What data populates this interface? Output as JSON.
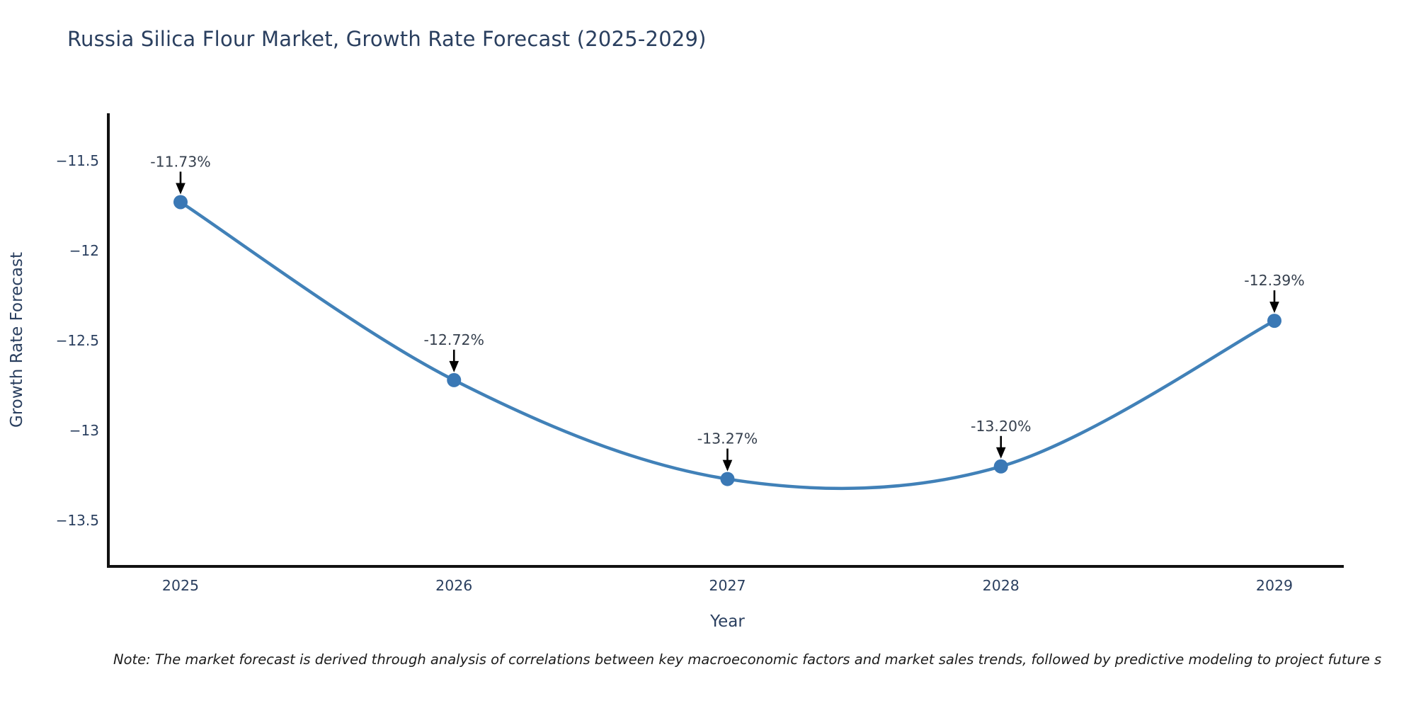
{
  "page": {
    "title": "Russia Silica Flour Market, Growth Rate Forecast (2025-2029)",
    "note": "Note: The market forecast is derived through analysis of correlations between key macroeconomic factors and market sales trends, followed by predictive modeling to project future s"
  },
  "chart_data": {
    "type": "line",
    "title": "Russia Silica Flour Market, Growth Rate Forecast (2025-2029)",
    "xlabel": "Year",
    "ylabel": "Growth Rate Forecast",
    "x": [
      2025,
      2026,
      2027,
      2028,
      2029
    ],
    "series": [
      {
        "name": "Growth Rate Forecast",
        "values": [
          -11.73,
          -12.72,
          -13.27,
          -13.2,
          -12.39
        ],
        "point_labels": [
          "-11.73%",
          "-12.72%",
          "-13.27%",
          "-13.20%",
          "-12.39%"
        ]
      }
    ],
    "x_tick_labels": [
      "2025",
      "2026",
      "2027",
      "2028",
      "2029"
    ],
    "y_ticks": [
      -11.5,
      -12,
      -12.5,
      -13,
      -13.5
    ],
    "y_tick_labels": [
      "−11.5",
      "−12",
      "−12.5",
      "−13",
      "−13.5"
    ],
    "ylim": [
      -13.756,
      -11.236
    ],
    "line_shape": "spline",
    "grid": false,
    "legend_visible": false,
    "annotations_have_arrows": true,
    "colors": {
      "line": "#4181b8",
      "marker": "#3a78b5",
      "axis_line": "#111111",
      "tick_text": "#2a3f5f",
      "axis_title_text": "#2a3f5f",
      "annotation_text": "#36404e",
      "arrow": "#000000",
      "background": "#ffffff",
      "title_text": "#2a3f5f"
    }
  }
}
